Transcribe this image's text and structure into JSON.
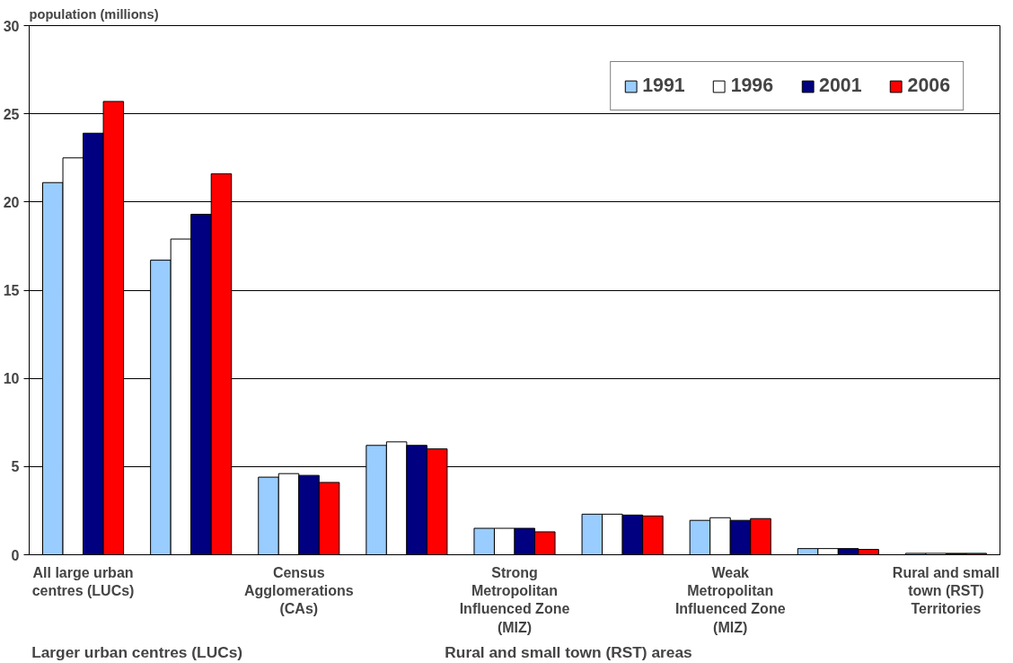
{
  "chart_data": {
    "type": "bar",
    "ylabel": "population (millions)",
    "categories": [
      "All large urban centres (LUCs)",
      null,
      "Census Agglomerations (CAs)",
      null,
      "Strong Metropolitan Influenced Zone (MIZ)",
      null,
      "Weak Metropolitan Influenced Zone (MIZ)",
      null,
      "Rural and small town (RST) Territories"
    ],
    "series": [
      {
        "name": "1991",
        "color": "#99ccff",
        "values": [
          21.1,
          16.7,
          4.4,
          6.2,
          1.5,
          2.3,
          1.95,
          0.35,
          0.08
        ]
      },
      {
        "name": "1996",
        "color": "#ffffff",
        "values": [
          22.5,
          17.9,
          4.6,
          6.4,
          1.5,
          2.3,
          2.1,
          0.35,
          0.08
        ]
      },
      {
        "name": "2001",
        "color": "#000080",
        "values": [
          23.9,
          19.3,
          4.5,
          6.2,
          1.5,
          2.25,
          1.95,
          0.35,
          0.08
        ]
      },
      {
        "name": "2006",
        "color": "#ff0000",
        "values": [
          25.7,
          21.6,
          4.1,
          6.0,
          1.3,
          2.2,
          2.05,
          0.3,
          0.08
        ]
      }
    ],
    "ylim": [
      0,
      30
    ],
    "yticks": [
      0,
      5,
      10,
      15,
      20,
      25,
      30
    ],
    "grid": "y",
    "legend": "top right",
    "annotations": [
      "Larger urban centres (LUCs)",
      "Rural and small town (RST) areas"
    ]
  }
}
